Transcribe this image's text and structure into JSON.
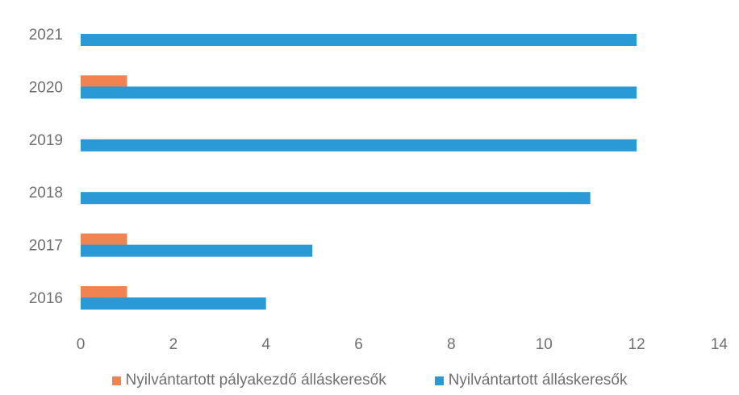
{
  "chart_data": {
    "type": "bar",
    "orientation": "horizontal",
    "categories": [
      "2016",
      "2017",
      "2018",
      "2019",
      "2020",
      "2021"
    ],
    "series": [
      {
        "name": "Nyilvántartott pályakezdő álláskeresők",
        "color": "#f0834f",
        "values": [
          1,
          1,
          0,
          0,
          1,
          0
        ]
      },
      {
        "name": "Nyilvántartott álláskeresők",
        "color": "#2a9ad6",
        "values": [
          4,
          5,
          11,
          12,
          12,
          12
        ]
      }
    ],
    "x_ticks": [
      "0",
      "2",
      "4",
      "6",
      "8",
      "10",
      "12",
      "14"
    ],
    "xlim": [
      0,
      14
    ],
    "grid": false,
    "legend_position": "bottom"
  }
}
